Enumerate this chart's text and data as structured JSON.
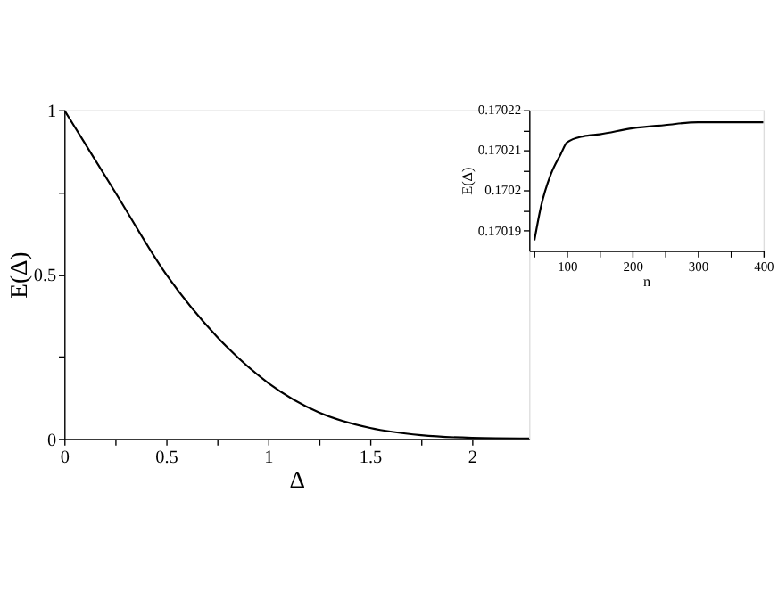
{
  "chart_data": [
    {
      "type": "line",
      "xlabel": "Δ",
      "ylabel": "E(Δ)",
      "x": [
        0,
        0.1,
        0.25,
        0.5,
        0.75,
        1,
        1.25,
        1.5,
        1.75,
        2,
        2.28
      ],
      "series": [
        {
          "color": "#000000",
          "values": [
            1,
            0.9,
            0.75,
            0.5,
            0.31,
            0.17,
            0.08,
            0.033,
            0.011,
            0.003,
            0.001
          ]
        }
      ],
      "xlim": [
        0,
        2.28
      ],
      "ylim": [
        0,
        1
      ],
      "xticks": [
        0,
        {
          "value": 0.25,
          "label": null
        },
        0.5,
        {
          "value": 0.75,
          "label": null
        },
        1,
        {
          "value": 1.25,
          "label": null
        },
        1.5,
        {
          "value": 1.75,
          "label": null
        },
        2
      ],
      "yticks": [
        0,
        {
          "value": 0.25,
          "label": null
        },
        0.5,
        {
          "value": 0.75,
          "label": null
        },
        1
      ],
      "grid": false,
      "legend": false,
      "marker": "none",
      "line_style": "solid"
    },
    {
      "type": "line",
      "xlabel": "n",
      "ylabel": "E(Δ)",
      "x": [
        50,
        60,
        75,
        90,
        100,
        125,
        150,
        200,
        250,
        300,
        400
      ],
      "series": [
        {
          "color": "#000000",
          "values": [
            0.1701876,
            0.170196,
            0.170204,
            0.170209,
            0.170212,
            0.1702135,
            0.170214,
            0.1702155,
            0.1702163,
            0.170217,
            0.170217
          ]
        }
      ],
      "xlim": [
        42,
        400
      ],
      "ylim": [
        0.170185,
        0.17022
      ],
      "xticks": [
        {
          "value": 50,
          "label": null
        },
        100,
        {
          "value": 150,
          "label": null
        },
        200,
        {
          "value": 250,
          "label": null
        },
        300,
        {
          "value": 350,
          "label": null
        },
        400
      ],
      "yticks": [
        0.17019,
        {
          "value": 0.170195,
          "label": null
        },
        0.1702,
        {
          "value": 0.170205,
          "label": null
        },
        0.17021,
        {
          "value": 0.170215,
          "label": null
        },
        0.17022
      ],
      "grid": false,
      "legend": false,
      "marker": "none",
      "line_style": "solid"
    }
  ]
}
